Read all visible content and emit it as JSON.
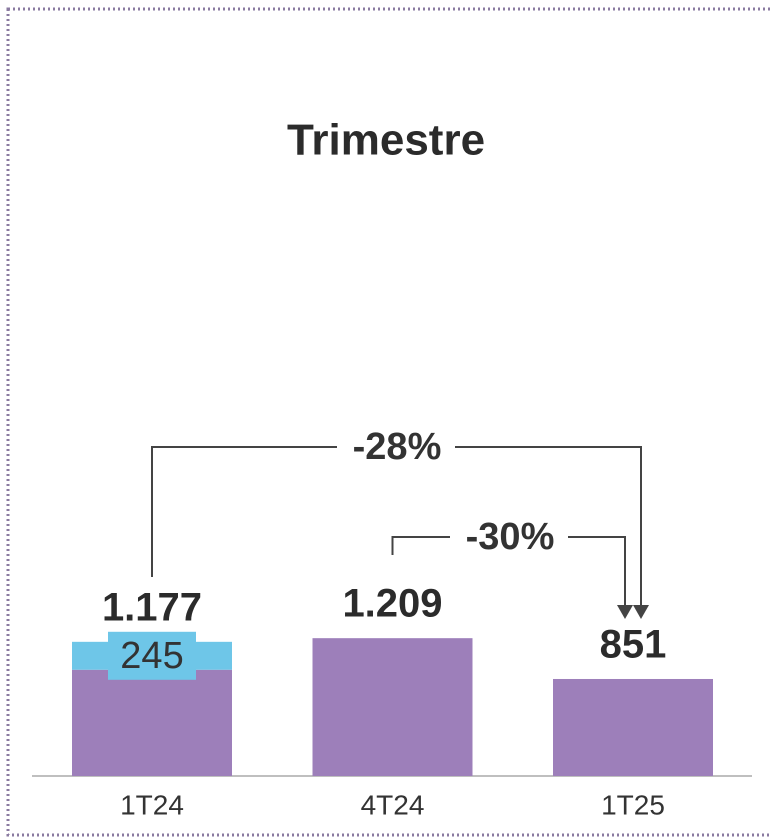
{
  "chart_data": {
    "type": "bar",
    "title": "Trimestre",
    "categories": [
      "1T24",
      "4T24",
      "1T25"
    ],
    "series": [
      {
        "color": "#9d7fba",
        "values": [
          932,
          1209,
          851
        ]
      },
      {
        "color": "#6ec6e8",
        "values": [
          245,
          null,
          null
        ]
      }
    ],
    "totals": [
      1177,
      1209,
      851
    ],
    "total_labels": [
      "1.177",
      "1.209",
      "851"
    ],
    "annotations": [
      {
        "text": "-28%",
        "from": 0,
        "to": 2
      },
      {
        "text": "-30%",
        "from": 1,
        "to": 2
      }
    ],
    "ylim": [
      0,
      5000
    ]
  }
}
